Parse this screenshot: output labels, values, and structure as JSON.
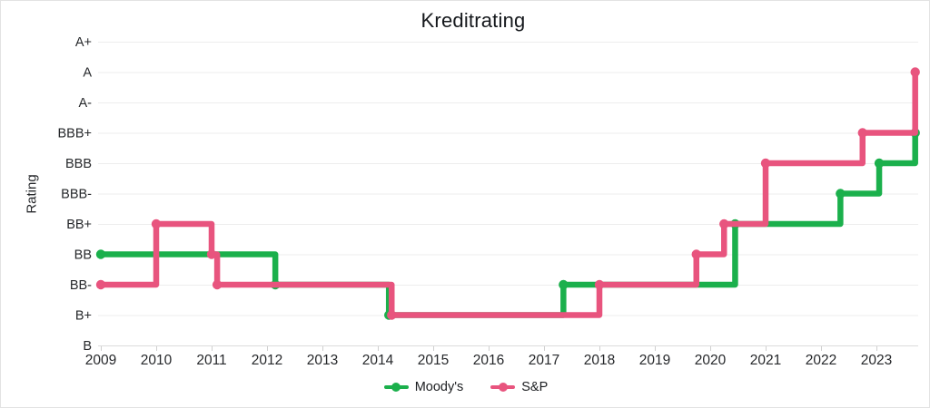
{
  "chart": {
    "title": "Kreditrating",
    "y_axis_title": "Rating",
    "series_colors": {
      "moodys": "#1bb04c",
      "sp": "#e8547e"
    }
  },
  "chart_data": {
    "type": "line",
    "step": "after",
    "title": "Kreditrating",
    "xlabel": "",
    "ylabel": "Rating",
    "grid": true,
    "legend_position": "bottom",
    "x_ticks": [
      2009,
      2010,
      2011,
      2012,
      2013,
      2014,
      2015,
      2016,
      2017,
      2018,
      2019,
      2020,
      2021,
      2022,
      2023
    ],
    "x_range": [
      2009,
      2023.7
    ],
    "y_categories": [
      "B",
      "B+",
      "BB-",
      "BB",
      "BB+",
      "BBB-",
      "BBB",
      "BBB+",
      "A-",
      "A",
      "A+"
    ],
    "series": [
      {
        "name": "Moody's",
        "color": "#1bb04c",
        "points": [
          [
            2009.0,
            "BB"
          ],
          [
            2012.15,
            "BB-"
          ],
          [
            2014.2,
            "B+"
          ],
          [
            2017.35,
            "BB-"
          ],
          [
            2020.45,
            "BB+"
          ],
          [
            2022.35,
            "BBB-"
          ],
          [
            2023.05,
            "BBB"
          ],
          [
            2023.7,
            "BBB+"
          ]
        ]
      },
      {
        "name": "S&P",
        "color": "#e8547e",
        "points": [
          [
            2009.0,
            "BB-"
          ],
          [
            2010.0,
            "BB+"
          ],
          [
            2011.0,
            "BB"
          ],
          [
            2011.1,
            "BB-"
          ],
          [
            2014.25,
            "B+"
          ],
          [
            2018.0,
            "BB-"
          ],
          [
            2019.75,
            "BB"
          ],
          [
            2020.25,
            "BB+"
          ],
          [
            2021.0,
            "BBB"
          ],
          [
            2022.75,
            "BBB+"
          ],
          [
            2023.7,
            "A"
          ]
        ]
      }
    ]
  }
}
